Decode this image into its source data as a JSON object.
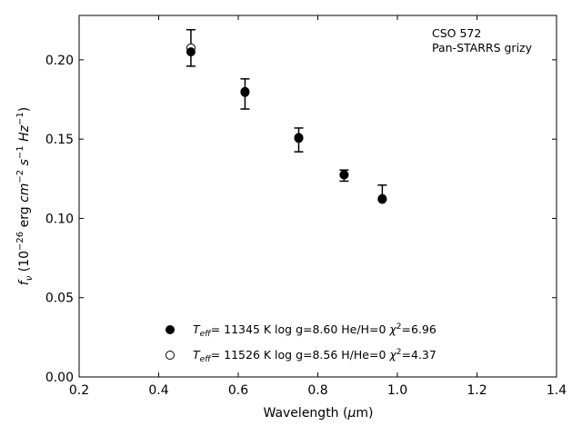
{
  "chart_data": {
    "type": "scatter",
    "title": "",
    "annotation": [
      "CSO 572",
      "Pan-STARRS grizy"
    ],
    "xlabel": "Wavelength (μm)",
    "ylabel": "f_ν (10^−26 erg cm^−2 s^−1 Hz^−1)",
    "xlim": [
      0.2,
      1.4
    ],
    "ylim": [
      0.0,
      0.228
    ],
    "xticks": [
      0.2,
      0.4,
      0.6,
      0.8,
      1.0,
      1.2,
      1.4
    ],
    "xtick_labels": [
      "0.2",
      "0.4",
      "0.6",
      "0.8",
      "1.0",
      "1.2",
      "1.4"
    ],
    "yticks": [
      0.0,
      0.05,
      0.1,
      0.15,
      0.2
    ],
    "ytick_labels": [
      "0.00",
      "0.05",
      "0.10",
      "0.15",
      "0.20"
    ],
    "observed": {
      "x": [
        0.481,
        0.617,
        0.752,
        0.866,
        0.962
      ],
      "y": [
        0.2075,
        0.1785,
        0.1495,
        0.127,
        0.1165
      ],
      "yerr": [
        0.0115,
        0.0095,
        0.0075,
        0.0035,
        0.0045
      ]
    },
    "series": [
      {
        "name": "T_eff= 11345 K  log g=8.60  He/H=0  χ²=6.96",
        "marker": "filled",
        "x": [
          0.481,
          0.617,
          0.752,
          0.866,
          0.962
        ],
        "y": [
          0.205,
          0.18,
          0.151,
          0.1275,
          0.112
        ]
      },
      {
        "name": "T_eff= 11526 K  log g=8.56  H/He=0  χ²=4.37",
        "marker": "open",
        "x": [
          0.481,
          0.617,
          0.752,
          0.866,
          0.962
        ],
        "y": [
          0.2075,
          0.1795,
          0.1505,
          0.1275,
          0.1125
        ]
      }
    ],
    "legend_placement": "bottom-center",
    "grid": false,
    "colors": {
      "marker": "#000000",
      "axis": "#000000"
    }
  }
}
